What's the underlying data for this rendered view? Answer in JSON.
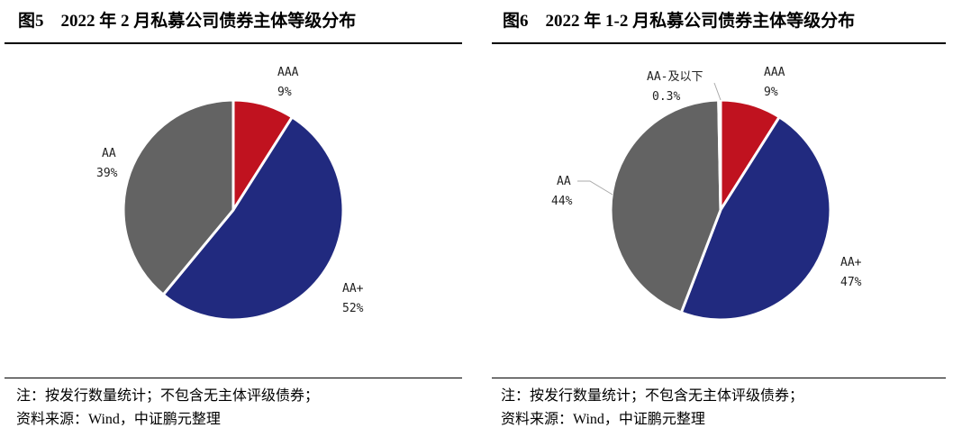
{
  "colors": {
    "AAA": "#C0121F",
    "AA+": "#212A7F",
    "AA": "#636363",
    "AA-及以下": "#636363"
  },
  "chart_data": [
    {
      "type": "pie",
      "title": "图5　2022 年 2 月私募公司债券主体等级分布",
      "slices": [
        {
          "label": "AAA",
          "value": 9,
          "text": "9%"
        },
        {
          "label": "AA+",
          "value": 52,
          "text": "52%"
        },
        {
          "label": "AA",
          "value": 39,
          "text": "39%"
        }
      ]
    },
    {
      "type": "pie",
      "title": "图6　2022 年 1-2 月私募公司债券主体等级分布",
      "slices": [
        {
          "label": "AAA",
          "value": 9,
          "text": "9%"
        },
        {
          "label": "AA+",
          "value": 47,
          "text": "47%"
        },
        {
          "label": "AA",
          "value": 44,
          "text": "44%"
        },
        {
          "label": "AA-及以下",
          "value": 0.3,
          "text": "0.3%"
        }
      ]
    }
  ],
  "notes": {
    "line1": "注：按发行数量统计；不包含无主体评级债券；",
    "line2": "资料来源：Wind，中证鹏元整理"
  }
}
